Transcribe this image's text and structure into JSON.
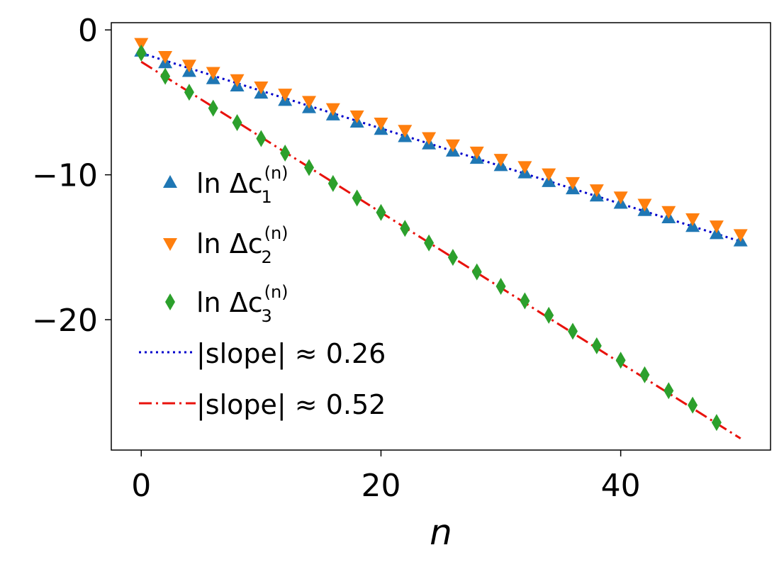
{
  "chart_data": {
    "type": "scatter",
    "title": "",
    "xlabel": "n",
    "ylabel": "",
    "xlim": [
      -2.5,
      52.5
    ],
    "ylim": [
      -29.0,
      0.5
    ],
    "xticks": [
      0,
      20,
      40
    ],
    "yticks": [
      0,
      -10,
      -20
    ],
    "xtick_labels": [
      "0",
      "20",
      "40"
    ],
    "ytick_labels": [
      "0",
      "−10",
      "−20"
    ],
    "legend_position": "center-left",
    "series": [
      {
        "name": "ln Δc1(n)",
        "label_main": "ln Δc",
        "label_sub": "1",
        "label_sup": "(n)",
        "marker": "triangle-up",
        "color": "#1f77b4",
        "x": [
          0,
          2,
          4,
          6,
          8,
          10,
          12,
          14,
          16,
          18,
          20,
          22,
          24,
          26,
          28,
          30,
          32,
          34,
          36,
          38,
          40,
          42,
          44,
          46,
          48,
          50
        ],
        "y": [
          -1.5,
          -2.3,
          -2.9,
          -3.4,
          -3.9,
          -4.4,
          -4.9,
          -5.4,
          -5.9,
          -6.4,
          -6.9,
          -7.4,
          -7.9,
          -8.4,
          -8.9,
          -9.4,
          -9.9,
          -10.5,
          -11.0,
          -11.5,
          -12.0,
          -12.5,
          -13.0,
          -13.6,
          -14.1,
          -14.6
        ]
      },
      {
        "name": "ln Δc2(n)",
        "label_main": "ln Δc",
        "label_sub": "2",
        "label_sup": "(n)",
        "marker": "triangle-down",
        "color": "#ff7f0e",
        "x": [
          0,
          2,
          4,
          6,
          8,
          10,
          12,
          14,
          16,
          18,
          20,
          22,
          24,
          26,
          28,
          30,
          32,
          34,
          36,
          38,
          40,
          42,
          44,
          46,
          48,
          50
        ],
        "y": [
          -0.9,
          -1.8,
          -2.4,
          -2.9,
          -3.4,
          -3.9,
          -4.4,
          -4.9,
          -5.4,
          -5.9,
          -6.4,
          -6.9,
          -7.4,
          -7.9,
          -8.4,
          -8.9,
          -9.4,
          -9.9,
          -10.5,
          -11.0,
          -11.5,
          -12.0,
          -12.5,
          -13.0,
          -13.5,
          -14.1
        ]
      },
      {
        "name": "ln Δc3(n)",
        "label_main": "ln Δc",
        "label_sub": "3",
        "label_sup": "(n)",
        "marker": "diamond",
        "color": "#2ca02c",
        "x": [
          0,
          2,
          4,
          6,
          8,
          10,
          12,
          14,
          16,
          18,
          20,
          22,
          24,
          26,
          28,
          30,
          32,
          34,
          36,
          38,
          40,
          42,
          44,
          46,
          48
        ],
        "y": [
          -1.6,
          -3.2,
          -4.3,
          -5.4,
          -6.4,
          -7.5,
          -8.5,
          -9.5,
          -10.6,
          -11.6,
          -12.6,
          -13.7,
          -14.7,
          -15.7,
          -16.7,
          -17.7,
          -18.7,
          -19.7,
          -20.8,
          -21.8,
          -22.8,
          -23.8,
          -24.9,
          -25.9,
          -27.1
        ]
      }
    ],
    "fit_lines": [
      {
        "name": "|slope| ≈ 0.26",
        "label": "|slope| ≈ 0.26",
        "color": "#0000cc",
        "style": "dotted",
        "x": [
          0,
          50
        ],
        "y": [
          -1.6,
          -14.6
        ]
      },
      {
        "name": "|slope| ≈ 0.52",
        "label": "|slope| ≈ 0.52",
        "color": "#e8120c",
        "style": "dashdot",
        "x": [
          0,
          50
        ],
        "y": [
          -2.2,
          -28.2
        ]
      }
    ]
  }
}
